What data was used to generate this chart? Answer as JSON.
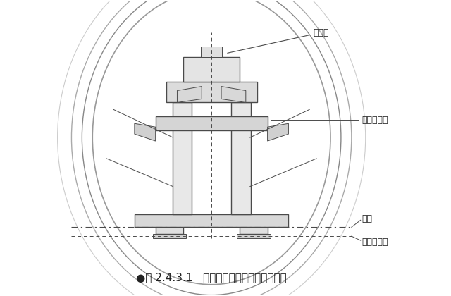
{
  "title": "●图 2.4.3.1   区间隧道模板台车支撑立面图",
  "title_fontsize": 11,
  "bg_color": "#ffffff",
  "line_color": "#4a4a4a",
  "label_jia_gao_he": "加高盒",
  "label_er_cun": "二衬混凝土",
  "label_gui_ding": "轨顶",
  "label_ai_bian": "矮边墙顶面",
  "fig_width": 6.4,
  "fig_height": 4.2,
  "dpi": 100
}
